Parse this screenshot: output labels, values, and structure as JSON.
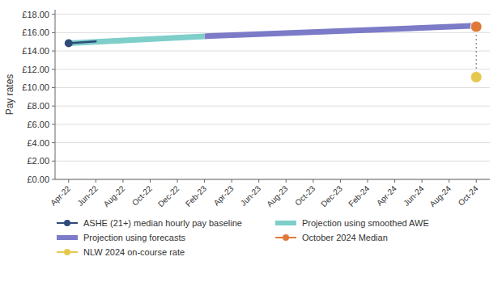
{
  "chart_data": {
    "type": "line",
    "categories": [
      "Apr-22",
      "Jun-22",
      "Aug-22",
      "Oct-22",
      "Dec-22",
      "Feb-23",
      "Apr-23",
      "Jun-23",
      "Aug-23",
      "Oct-23",
      "Dec-23",
      "Feb-24",
      "Apr-24",
      "Jun-24",
      "Aug-24",
      "Oct-24"
    ],
    "series": [
      {
        "name": "ASHE (21+) median hourly pay baseline",
        "type": "line",
        "color": "#2e4b7a",
        "marker": "circle",
        "line_style": "solid",
        "x": [
          "Apr-22",
          "Jun-22"
        ],
        "values": [
          14.85,
          15.05
        ]
      },
      {
        "name": "Projection using smoothed AWE",
        "type": "line",
        "color": "#7ececa",
        "line_style": "solid",
        "x": [
          "Apr-22",
          "Feb-23"
        ],
        "values": [
          14.85,
          15.6
        ]
      },
      {
        "name": "Projection using forecasts",
        "type": "line",
        "color": "#7b7bc8",
        "line_style": "solid",
        "x": [
          "Feb-23",
          "Oct-24"
        ],
        "values": [
          15.6,
          16.75
        ]
      },
      {
        "name": "October 2024 Median",
        "type": "scatter",
        "color": "#e07a3a",
        "marker": "circle",
        "x": [
          "Oct-24"
        ],
        "values": [
          16.65
        ]
      },
      {
        "name": "NLW 2024 on-course rate",
        "type": "scatter",
        "color": "#e6c84e",
        "marker": "circle",
        "x": [
          "Oct-24"
        ],
        "values": [
          11.15
        ]
      }
    ],
    "ylabel": "Pay rates",
    "ylim": [
      0,
      18.5
    ],
    "yticks": [
      {
        "value": 0,
        "label": "£0.00"
      },
      {
        "value": 2,
        "label": "£2.00"
      },
      {
        "value": 4,
        "label": "£4.00"
      },
      {
        "value": 6,
        "label": "£6.00"
      },
      {
        "value": 8,
        "label": "£8.00"
      },
      {
        "value": 10,
        "label": "£10.00"
      },
      {
        "value": 12,
        "label": "£12.00"
      },
      {
        "value": 14,
        "label": "£14.00"
      },
      {
        "value": 16,
        "label": "£16.00"
      },
      {
        "value": 18,
        "label": "£18.00"
      }
    ],
    "grid": true,
    "legend": "bottom"
  }
}
